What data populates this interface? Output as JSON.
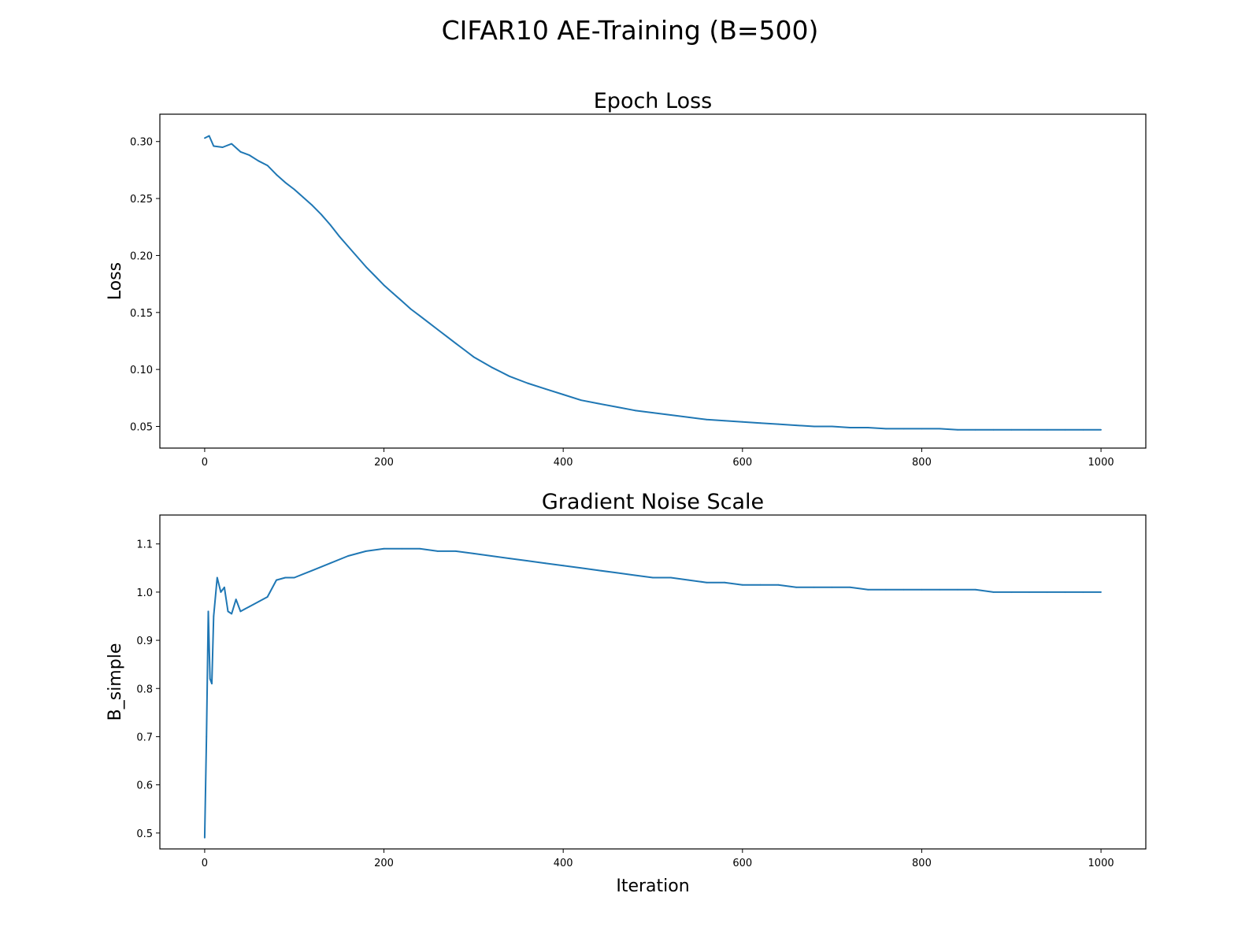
{
  "figure": {
    "title": "CIFAR10 AE-Training (B=500)"
  },
  "style": {
    "line_color": "#1f77b4"
  },
  "chart_data": [
    {
      "id": "loss",
      "type": "line",
      "title": "Epoch Loss",
      "xlabel": "",
      "ylabel": "Loss",
      "xlim": [
        -50,
        1050
      ],
      "ylim": [
        0.031,
        0.324
      ],
      "xticks": [
        0,
        200,
        400,
        600,
        800,
        1000
      ],
      "xtick_labels": [
        "0",
        "200",
        "400",
        "600",
        "800",
        "1000"
      ],
      "yticks": [
        0.05,
        0.1,
        0.15,
        0.2,
        0.25,
        0.3
      ],
      "ytick_labels": [
        "0.05",
        "0.10",
        "0.15",
        "0.20",
        "0.25",
        "0.30"
      ],
      "grid": false,
      "series": [
        {
          "x": [
            0,
            5,
            10,
            20,
            30,
            40,
            50,
            60,
            70,
            80,
            90,
            100,
            110,
            120,
            130,
            140,
            150,
            160,
            170,
            180,
            190,
            200,
            210,
            220,
            230,
            240,
            250,
            260,
            270,
            280,
            290,
            300,
            320,
            340,
            360,
            380,
            400,
            420,
            440,
            460,
            480,
            500,
            520,
            540,
            560,
            580,
            600,
            620,
            640,
            660,
            680,
            700,
            720,
            740,
            760,
            780,
            800,
            820,
            840,
            860,
            880,
            900,
            920,
            940,
            960,
            980,
            1000
          ],
          "y": [
            0.303,
            0.305,
            0.296,
            0.295,
            0.298,
            0.291,
            0.288,
            0.283,
            0.279,
            0.271,
            0.264,
            0.258,
            0.251,
            0.244,
            0.236,
            0.227,
            0.217,
            0.208,
            0.199,
            0.19,
            0.182,
            0.174,
            0.167,
            0.16,
            0.153,
            0.147,
            0.141,
            0.135,
            0.129,
            0.123,
            0.117,
            0.111,
            0.102,
            0.094,
            0.088,
            0.083,
            0.078,
            0.073,
            0.07,
            0.067,
            0.064,
            0.062,
            0.06,
            0.058,
            0.056,
            0.055,
            0.054,
            0.053,
            0.052,
            0.051,
            0.05,
            0.05,
            0.049,
            0.049,
            0.048,
            0.048,
            0.048,
            0.048,
            0.047,
            0.047,
            0.047,
            0.047,
            0.047,
            0.047,
            0.047,
            0.047,
            0.047
          ]
        }
      ]
    },
    {
      "id": "gns",
      "type": "line",
      "title": "Gradient Noise Scale",
      "xlabel": "Iteration",
      "ylabel": "B_simple",
      "xlim": [
        -50,
        1050
      ],
      "ylim": [
        0.467,
        1.16
      ],
      "xticks": [
        0,
        200,
        400,
        600,
        800,
        1000
      ],
      "xtick_labels": [
        "0",
        "200",
        "400",
        "600",
        "800",
        "1000"
      ],
      "yticks": [
        0.5,
        0.6,
        0.7,
        0.8,
        0.9,
        1.0,
        1.1
      ],
      "ytick_labels": [
        "0.5",
        "0.6",
        "0.7",
        "0.8",
        "0.9",
        "1.0",
        "1.1"
      ],
      "grid": false,
      "series": [
        {
          "x": [
            0,
            2,
            4,
            6,
            8,
            10,
            14,
            18,
            22,
            26,
            30,
            35,
            40,
            45,
            50,
            60,
            70,
            80,
            90,
            100,
            120,
            140,
            160,
            180,
            200,
            220,
            240,
            260,
            280,
            300,
            320,
            340,
            360,
            380,
            400,
            420,
            440,
            460,
            480,
            500,
            520,
            540,
            560,
            580,
            600,
            620,
            640,
            660,
            680,
            700,
            720,
            740,
            760,
            780,
            800,
            820,
            840,
            860,
            880,
            900,
            920,
            940,
            960,
            980,
            1000
          ],
          "y": [
            0.49,
            0.7,
            0.96,
            0.82,
            0.81,
            0.95,
            1.03,
            1.0,
            1.01,
            0.96,
            0.955,
            0.985,
            0.96,
            0.965,
            0.97,
            0.98,
            0.99,
            1.025,
            1.03,
            1.03,
            1.045,
            1.06,
            1.075,
            1.085,
            1.09,
            1.09,
            1.09,
            1.085,
            1.085,
            1.08,
            1.075,
            1.07,
            1.065,
            1.06,
            1.055,
            1.05,
            1.045,
            1.04,
            1.035,
            1.03,
            1.03,
            1.025,
            1.02,
            1.02,
            1.015,
            1.015,
            1.015,
            1.01,
            1.01,
            1.01,
            1.01,
            1.005,
            1.005,
            1.005,
            1.005,
            1.005,
            1.005,
            1.005,
            1.0,
            1.0,
            1.0,
            1.0,
            1.0,
            1.0,
            1.0
          ]
        }
      ]
    }
  ]
}
